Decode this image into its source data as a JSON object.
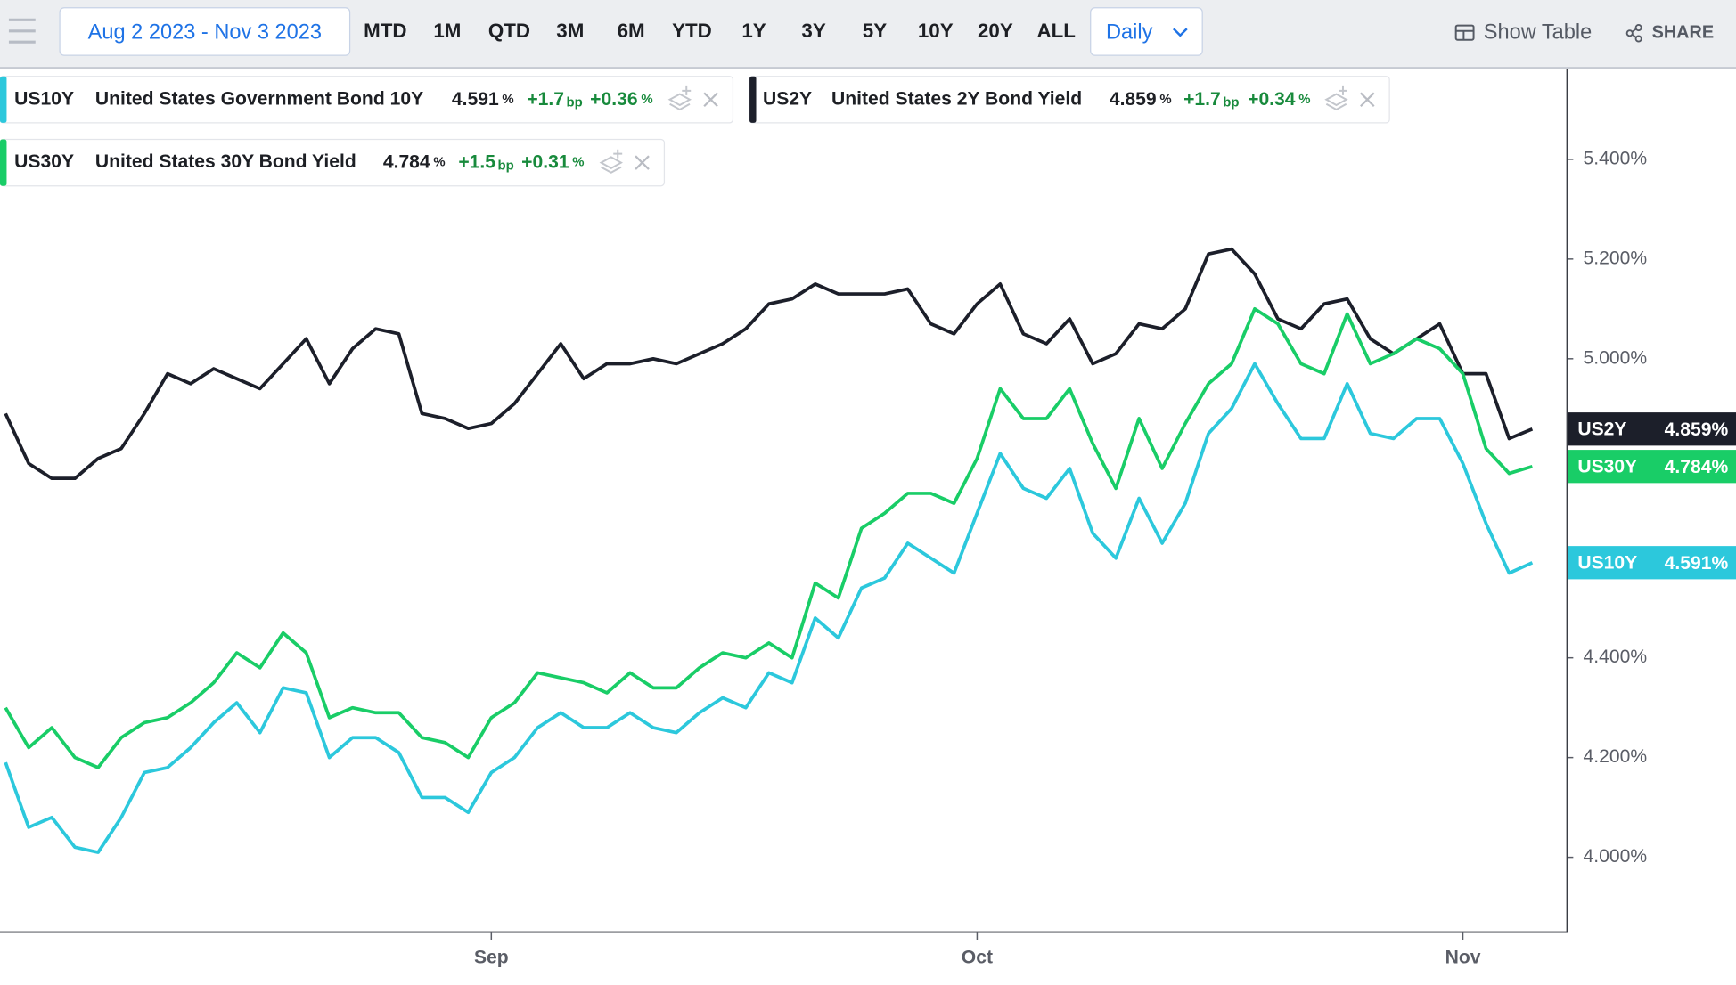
{
  "toolbar": {
    "date_range": "Aug 2 2023 - Nov 3 2023",
    "ranges": [
      "MTD",
      "1M",
      "QTD",
      "3M",
      "6M",
      "YTD",
      "1Y",
      "3Y",
      "5Y",
      "10Y",
      "20Y",
      "ALL"
    ],
    "interval": "Daily",
    "show_table": "Show Table",
    "share": "SHARE"
  },
  "chart_data": {
    "type": "line",
    "categories": [
      null,
      null,
      null,
      null,
      null,
      null,
      null,
      null,
      null,
      null,
      null,
      null,
      null,
      null,
      null,
      null,
      null,
      null,
      null,
      null,
      null,
      "Sep",
      null,
      null,
      null,
      null,
      null,
      null,
      null,
      null,
      null,
      null,
      null,
      null,
      null,
      null,
      null,
      null,
      null,
      null,
      null,
      null,
      "Oct",
      null,
      null,
      null,
      null,
      null,
      null,
      null,
      null,
      null,
      null,
      null,
      null,
      null,
      null,
      null,
      null,
      null,
      null,
      null,
      null,
      "Nov",
      null,
      null,
      null
    ],
    "ylim": [
      3.851,
      5.582
    ],
    "yticks": [
      {
        "value": 4.0,
        "label": "4.000%"
      },
      {
        "value": 4.2,
        "label": "4.200%"
      },
      {
        "value": 4.4,
        "label": "4.400%"
      },
      {
        "value": 5.0,
        "label": "5.000%"
      },
      {
        "value": 5.2,
        "label": "5.200%"
      },
      {
        "value": 5.4,
        "label": "5.400%"
      }
    ],
    "series": [
      {
        "name": "US10Y",
        "description": "United States Government Bond 10Y",
        "color": "#2cc8dc",
        "last": "4.591",
        "unit": "%",
        "change": "+1.7",
        "change_unit": "bp",
        "change_pct": "+0.36",
        "values": [
          4.19,
          4.06,
          4.08,
          4.02,
          4.01,
          4.08,
          4.17,
          4.18,
          4.22,
          4.27,
          4.31,
          4.25,
          4.34,
          4.33,
          4.2,
          4.24,
          4.24,
          4.21,
          4.12,
          4.12,
          4.09,
          4.17,
          4.2,
          4.26,
          4.29,
          4.26,
          4.26,
          4.29,
          4.26,
          4.25,
          4.29,
          4.32,
          4.3,
          4.37,
          4.35,
          4.48,
          4.44,
          4.54,
          4.56,
          4.63,
          4.6,
          4.57,
          4.69,
          4.81,
          4.74,
          4.72,
          4.78,
          4.65,
          4.6,
          4.72,
          4.63,
          4.71,
          4.85,
          4.9,
          4.99,
          4.91,
          4.84,
          4.84,
          4.95,
          4.85,
          4.84,
          4.88,
          4.88,
          4.79,
          4.67,
          4.57,
          4.591
        ]
      },
      {
        "name": "US2Y",
        "description": "United States 2Y Bond Yield",
        "color": "#1c1f2a",
        "last": "4.859",
        "unit": "%",
        "change": "+1.7",
        "change_unit": "bp",
        "change_pct": "+0.34",
        "values": [
          4.89,
          4.79,
          4.76,
          4.76,
          4.8,
          4.82,
          4.89,
          4.97,
          4.95,
          4.98,
          4.96,
          4.94,
          4.99,
          5.04,
          4.95,
          5.02,
          5.06,
          5.05,
          4.89,
          4.88,
          4.86,
          4.87,
          4.91,
          4.97,
          5.03,
          4.96,
          4.99,
          4.99,
          5.0,
          4.99,
          5.01,
          5.03,
          5.06,
          5.11,
          5.12,
          5.15,
          5.13,
          5.13,
          5.13,
          5.14,
          5.07,
          5.05,
          5.11,
          5.15,
          5.05,
          5.03,
          5.08,
          4.99,
          5.01,
          5.07,
          5.06,
          5.1,
          5.21,
          5.22,
          5.17,
          5.08,
          5.06,
          5.11,
          5.12,
          5.04,
          5.01,
          5.04,
          5.07,
          4.97,
          4.97,
          4.84,
          4.859
        ]
      },
      {
        "name": "US30Y",
        "description": "United States 30Y Bond Yield",
        "color": "#19cd67",
        "last": "4.784",
        "unit": "%",
        "change": "+1.5",
        "change_unit": "bp",
        "change_pct": "+0.31",
        "values": [
          4.3,
          4.22,
          4.26,
          4.2,
          4.18,
          4.24,
          4.27,
          4.28,
          4.31,
          4.35,
          4.41,
          4.38,
          4.45,
          4.41,
          4.28,
          4.3,
          4.29,
          4.29,
          4.24,
          4.23,
          4.2,
          4.28,
          4.31,
          4.37,
          4.36,
          4.35,
          4.33,
          4.37,
          4.34,
          4.34,
          4.38,
          4.41,
          4.4,
          4.43,
          4.4,
          4.55,
          4.52,
          4.66,
          4.69,
          4.73,
          4.73,
          4.71,
          4.8,
          4.94,
          4.88,
          4.88,
          4.94,
          4.83,
          4.74,
          4.88,
          4.78,
          4.87,
          4.95,
          4.99,
          5.1,
          5.07,
          4.99,
          4.97,
          5.09,
          4.99,
          5.01,
          5.04,
          5.02,
          4.97,
          4.82,
          4.77,
          4.784
        ]
      }
    ]
  }
}
